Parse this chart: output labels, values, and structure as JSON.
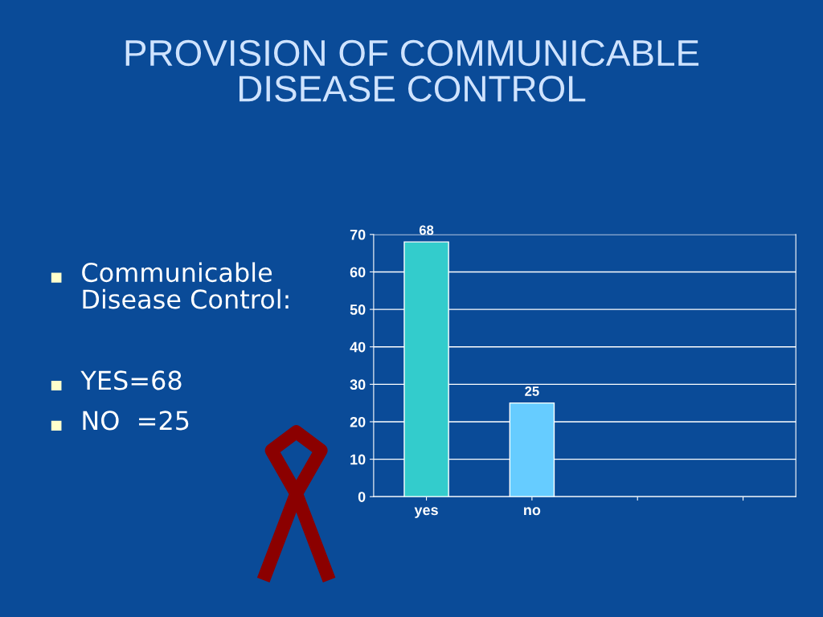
{
  "chart_data": {
    "type": "bar",
    "title": "PROVISION OF COMMUNICABLE\nDISEASE CONTROL",
    "categories": [
      "yes",
      "no",
      null,
      null
    ],
    "values": [
      68,
      25,
      null,
      null
    ],
    "colors": [
      "#33cccc",
      "#66ccff",
      "#33cccc",
      "#33cccc"
    ],
    "ylim": [
      0,
      70
    ],
    "yticks": [
      0,
      10,
      20,
      30,
      40,
      50,
      60,
      70
    ],
    "grid": "y",
    "data_labels": true,
    "legend": false,
    "annotations": [
      "Communicable\nDisease Control:",
      "YES=68",
      "NO  =25"
    ]
  }
}
